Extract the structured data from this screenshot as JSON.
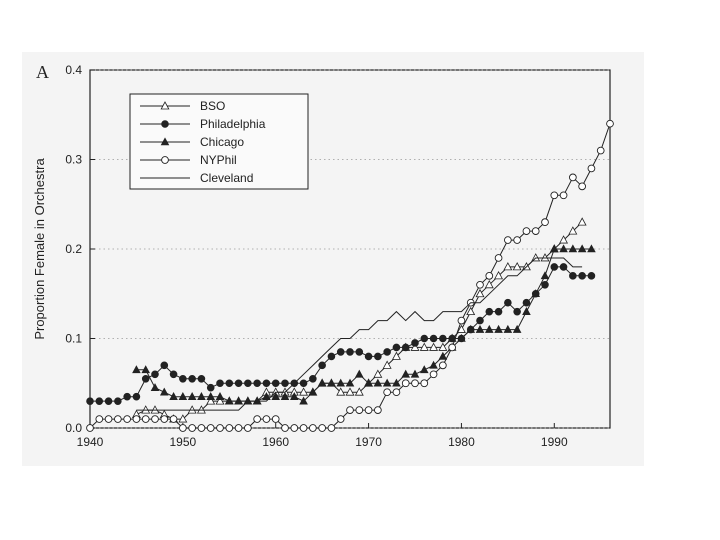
{
  "chart_data": {
    "type": "line",
    "panel_label": "A",
    "title": "",
    "xlabel": "",
    "ylabel": "Proportion Female in Orchestra",
    "xlim": [
      1940,
      1996
    ],
    "ylim": [
      0,
      0.4
    ],
    "x_ticks": [
      "1940",
      "1950",
      "1960",
      "1970",
      "1980",
      "1990"
    ],
    "y_ticks": [
      "0.0",
      "0.1",
      "0.2",
      "0.3",
      "0.4"
    ],
    "grid": "horizontal-dotted",
    "legend_position": "top-left",
    "series": [
      {
        "name": "BSO",
        "marker": "triangle-open",
        "x": [
          1945,
          1946,
          1947,
          1948,
          1949,
          1950,
          1951,
          1952,
          1953,
          1954,
          1955,
          1956,
          1957,
          1958,
          1959,
          1960,
          1961,
          1962,
          1963,
          1964,
          1965,
          1966,
          1967,
          1968,
          1969,
          1970,
          1971,
          1972,
          1973,
          1974,
          1975,
          1976,
          1977,
          1978,
          1979,
          1980,
          1981,
          1982,
          1983,
          1984,
          1985,
          1986,
          1987,
          1988,
          1989,
          1990,
          1991,
          1992,
          1993
        ],
        "y": [
          0.015,
          0.02,
          0.02,
          0.015,
          0.01,
          0.01,
          0.02,
          0.02,
          0.03,
          0.03,
          0.03,
          0.03,
          0.03,
          0.03,
          0.04,
          0.04,
          0.04,
          0.04,
          0.04,
          0.04,
          0.05,
          0.05,
          0.04,
          0.04,
          0.04,
          0.05,
          0.06,
          0.07,
          0.08,
          0.09,
          0.09,
          0.09,
          0.09,
          0.09,
          0.1,
          0.11,
          0.13,
          0.15,
          0.16,
          0.17,
          0.18,
          0.18,
          0.18,
          0.19,
          0.19,
          0.2,
          0.21,
          0.22,
          0.23
        ]
      },
      {
        "name": "Philadelphia",
        "marker": "circle-filled",
        "x": [
          1940,
          1941,
          1942,
          1943,
          1944,
          1945,
          1946,
          1947,
          1948,
          1949,
          1950,
          1951,
          1952,
          1953,
          1954,
          1955,
          1956,
          1957,
          1958,
          1959,
          1960,
          1961,
          1962,
          1963,
          1964,
          1965,
          1966,
          1967,
          1968,
          1969,
          1970,
          1971,
          1972,
          1973,
          1974,
          1975,
          1976,
          1977,
          1978,
          1979,
          1980,
          1981,
          1982,
          1983,
          1984,
          1985,
          1986,
          1987,
          1988,
          1989,
          1990,
          1991,
          1992,
          1993,
          1994
        ],
        "y": [
          0.03,
          0.03,
          0.03,
          0.03,
          0.035,
          0.035,
          0.055,
          0.06,
          0.07,
          0.06,
          0.055,
          0.055,
          0.055,
          0.045,
          0.05,
          0.05,
          0.05,
          0.05,
          0.05,
          0.05,
          0.05,
          0.05,
          0.05,
          0.05,
          0.055,
          0.07,
          0.08,
          0.085,
          0.085,
          0.085,
          0.08,
          0.08,
          0.085,
          0.09,
          0.09,
          0.095,
          0.1,
          0.1,
          0.1,
          0.1,
          0.1,
          0.11,
          0.12,
          0.13,
          0.13,
          0.14,
          0.13,
          0.14,
          0.15,
          0.16,
          0.18,
          0.18,
          0.17,
          0.17,
          0.17
        ]
      },
      {
        "name": "Chicago",
        "marker": "triangle-filled",
        "x": [
          1945,
          1946,
          1947,
          1948,
          1949,
          1950,
          1951,
          1952,
          1953,
          1954,
          1955,
          1956,
          1957,
          1958,
          1959,
          1960,
          1961,
          1962,
          1963,
          1964,
          1965,
          1966,
          1967,
          1968,
          1969,
          1970,
          1971,
          1972,
          1973,
          1974,
          1975,
          1976,
          1977,
          1978,
          1979,
          1980,
          1981,
          1982,
          1983,
          1984,
          1985,
          1986,
          1987,
          1988,
          1989,
          1990,
          1991,
          1992,
          1993,
          1994
        ],
        "y": [
          0.065,
          0.065,
          0.045,
          0.04,
          0.035,
          0.035,
          0.035,
          0.035,
          0.035,
          0.035,
          0.03,
          0.03,
          0.03,
          0.03,
          0.035,
          0.035,
          0.035,
          0.035,
          0.03,
          0.04,
          0.05,
          0.05,
          0.05,
          0.05,
          0.06,
          0.05,
          0.05,
          0.05,
          0.05,
          0.06,
          0.06,
          0.065,
          0.07,
          0.08,
          0.09,
          0.1,
          0.11,
          0.11,
          0.11,
          0.11,
          0.11,
          0.11,
          0.13,
          0.15,
          0.17,
          0.2,
          0.2,
          0.2,
          0.2,
          0.2
        ]
      },
      {
        "name": "NYPhil",
        "marker": "circle-open",
        "x": [
          1940,
          1941,
          1942,
          1943,
          1944,
          1945,
          1946,
          1947,
          1948,
          1949,
          1950,
          1951,
          1952,
          1953,
          1954,
          1955,
          1956,
          1957,
          1958,
          1959,
          1960,
          1961,
          1962,
          1963,
          1964,
          1965,
          1966,
          1967,
          1968,
          1969,
          1970,
          1971,
          1972,
          1973,
          1974,
          1975,
          1976,
          1977,
          1978,
          1979,
          1980,
          1981,
          1982,
          1983,
          1984,
          1985,
          1986,
          1987,
          1988,
          1989,
          1990,
          1991,
          1992,
          1993,
          1994,
          1995,
          1996
        ],
        "y": [
          0.0,
          0.01,
          0.01,
          0.01,
          0.01,
          0.01,
          0.01,
          0.01,
          0.01,
          0.01,
          0.0,
          0.0,
          0.0,
          0.0,
          0.0,
          0.0,
          0.0,
          0.0,
          0.01,
          0.01,
          0.01,
          0.0,
          0.0,
          0.0,
          0.0,
          0.0,
          0.0,
          0.01,
          0.02,
          0.02,
          0.02,
          0.02,
          0.04,
          0.04,
          0.05,
          0.05,
          0.05,
          0.06,
          0.07,
          0.09,
          0.12,
          0.14,
          0.16,
          0.17,
          0.19,
          0.21,
          0.21,
          0.22,
          0.22,
          0.23,
          0.26,
          0.26,
          0.28,
          0.27,
          0.29,
          0.31,
          0.34
        ]
      },
      {
        "name": "Cleveland",
        "marker": "none",
        "x": [
          1945,
          1946,
          1947,
          1948,
          1949,
          1950,
          1951,
          1952,
          1953,
          1954,
          1955,
          1956,
          1957,
          1958,
          1959,
          1960,
          1961,
          1962,
          1963,
          1964,
          1965,
          1966,
          1967,
          1968,
          1969,
          1970,
          1971,
          1972,
          1973,
          1974,
          1975,
          1976,
          1977,
          1978,
          1979,
          1980,
          1981,
          1982,
          1983,
          1984,
          1985,
          1986,
          1987,
          1988,
          1989,
          1990,
          1991,
          1992,
          1993
        ],
        "y": [
          0.02,
          0.02,
          0.02,
          0.02,
          0.02,
          0.02,
          0.02,
          0.02,
          0.02,
          0.02,
          0.02,
          0.02,
          0.03,
          0.03,
          0.03,
          0.04,
          0.04,
          0.05,
          0.06,
          0.07,
          0.08,
          0.09,
          0.1,
          0.1,
          0.11,
          0.11,
          0.12,
          0.12,
          0.13,
          0.12,
          0.13,
          0.12,
          0.12,
          0.13,
          0.13,
          0.13,
          0.14,
          0.14,
          0.15,
          0.16,
          0.17,
          0.17,
          0.18,
          0.19,
          0.19,
          0.19,
          0.19,
          0.18,
          0.18
        ]
      }
    ]
  }
}
